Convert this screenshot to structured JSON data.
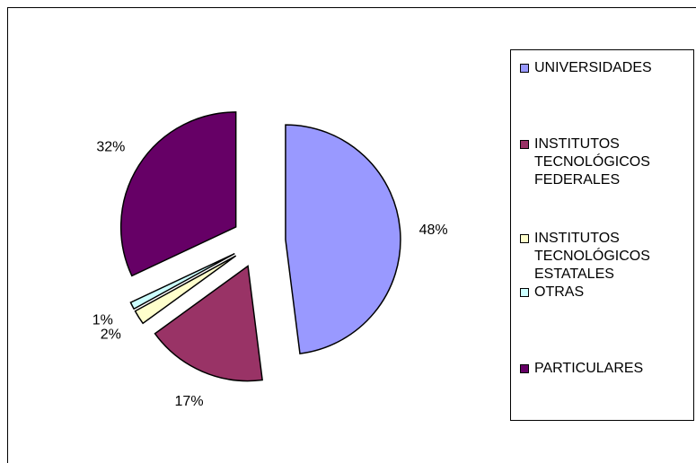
{
  "chart_data": {
    "type": "pie",
    "categories": [
      "UNIVERSIDADES",
      "INSTITUTOS TECNOLÓGICOS FEDERALES",
      "INSTITUTOS TECNOLÓGICOS ESTATALES",
      "OTRAS",
      "PARTICULARES"
    ],
    "values": [
      48,
      17,
      2,
      1,
      32
    ],
    "value_labels": [
      "48%",
      "17%",
      "2%",
      "1%",
      "32%"
    ],
    "colors": [
      "#9999ff",
      "#993366",
      "#ffffcc",
      "#ccffff",
      "#660066"
    ],
    "legend": "right"
  }
}
